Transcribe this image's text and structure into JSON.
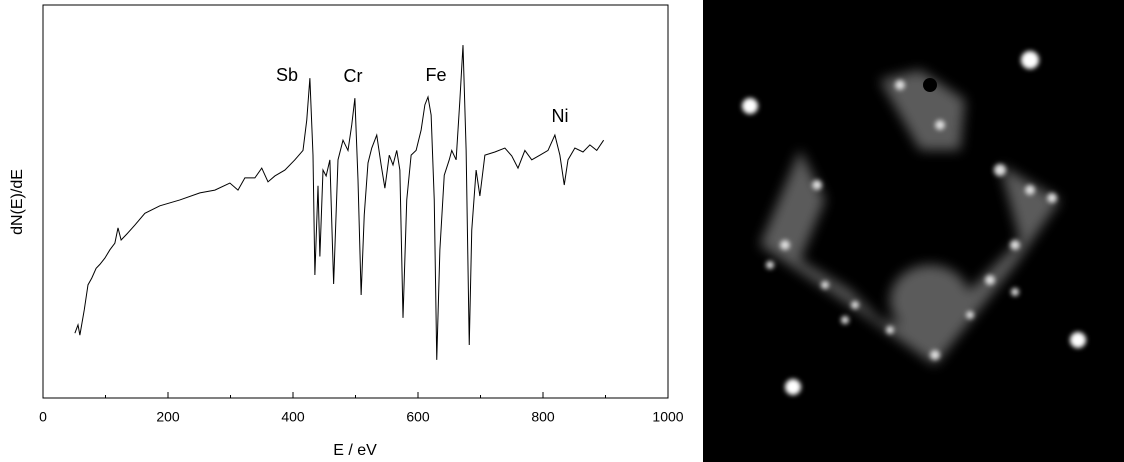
{
  "chart_data": {
    "type": "line",
    "x_label": "E / eV",
    "y_label": "dN(E)/dE",
    "xlim": [
      0,
      1000
    ],
    "xticks": [
      0,
      200,
      400,
      600,
      800,
      1000
    ],
    "ylim": [
      0,
      100
    ],
    "color": "#000000",
    "annotations": [
      "Sb",
      "Cr",
      "Fe",
      "Ni"
    ],
    "x": [
      51,
      56,
      59,
      66,
      72,
      78,
      85,
      91,
      99,
      107,
      115,
      120,
      125,
      134,
      147,
      163,
      187,
      219,
      251,
      275,
      299,
      312,
      323,
      339,
      350,
      360,
      371,
      387,
      403,
      416,
      422,
      427,
      432,
      435,
      440,
      443,
      448,
      453,
      459,
      465,
      472,
      480,
      488,
      494,
      499,
      504,
      509,
      514,
      520,
      526,
      534,
      541,
      547,
      554,
      560,
      566,
      571,
      576,
      582,
      589,
      597,
      605,
      611,
      616,
      621,
      626,
      630,
      635,
      642,
      650,
      654,
      661,
      667,
      672,
      677,
      682,
      686,
      693,
      699,
      707,
      723,
      739,
      750,
      760,
      771,
      782,
      795,
      808,
      819,
      827,
      834,
      840,
      851,
      864,
      875,
      886,
      897
    ],
    "y": [
      16.5,
      18.6,
      16,
      22.4,
      28.8,
      30.5,
      33,
      34,
      35.6,
      37.7,
      39.4,
      43.3,
      40.2,
      41.7,
      44,
      47,
      48.9,
      50.4,
      52.2,
      52.9,
      54.7,
      52.9,
      56,
      56,
      58.5,
      55,
      56.5,
      58,
      60.6,
      63,
      70.7,
      81.4,
      61.8,
      31.3,
      54,
      36,
      58,
      56.5,
      60.6,
      29,
      60.6,
      65.6,
      63,
      69.5,
      76.3,
      55.5,
      26.2,
      46.6,
      59.8,
      63.6,
      66.9,
      59.3,
      53.4,
      61.8,
      59.3,
      63,
      58,
      20.4,
      50.4,
      61.8,
      63,
      68.2,
      74.6,
      76.6,
      72,
      50.4,
      9.7,
      37.7,
      56.7,
      60.6,
      63,
      60.6,
      75.8,
      89.8,
      63,
      13.5,
      42.7,
      58,
      51.4,
      61.8,
      62.6,
      63.6,
      61.6,
      58.5,
      63,
      60.6,
      61.8,
      63,
      66.9,
      61.8,
      54.2,
      60.6,
      63.6,
      62.6,
      64.4,
      63,
      65.6
    ]
  }
}
